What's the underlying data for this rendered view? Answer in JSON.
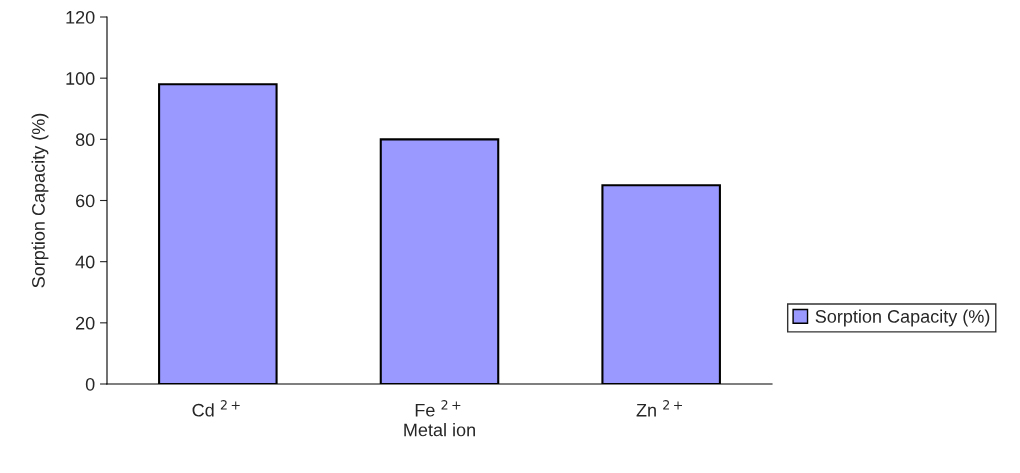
{
  "chart_data": {
    "type": "bar",
    "xlabel": "Metal ion",
    "ylabel": "Sorption Capacity (%)",
    "categories": [
      "Cd $^{2+}$",
      "Fe $^{2+}$",
      "Zn $^{2+}$"
    ],
    "series": [
      {
        "name": "Sorption Capacity (%)",
        "color": "#9999ff",
        "values": [
          98,
          80,
          65
        ]
      }
    ],
    "ylim": [
      0,
      120
    ],
    "yticks": [
      0,
      20,
      40,
      60,
      80,
      100,
      120
    ],
    "grid": false,
    "legend": "right"
  }
}
